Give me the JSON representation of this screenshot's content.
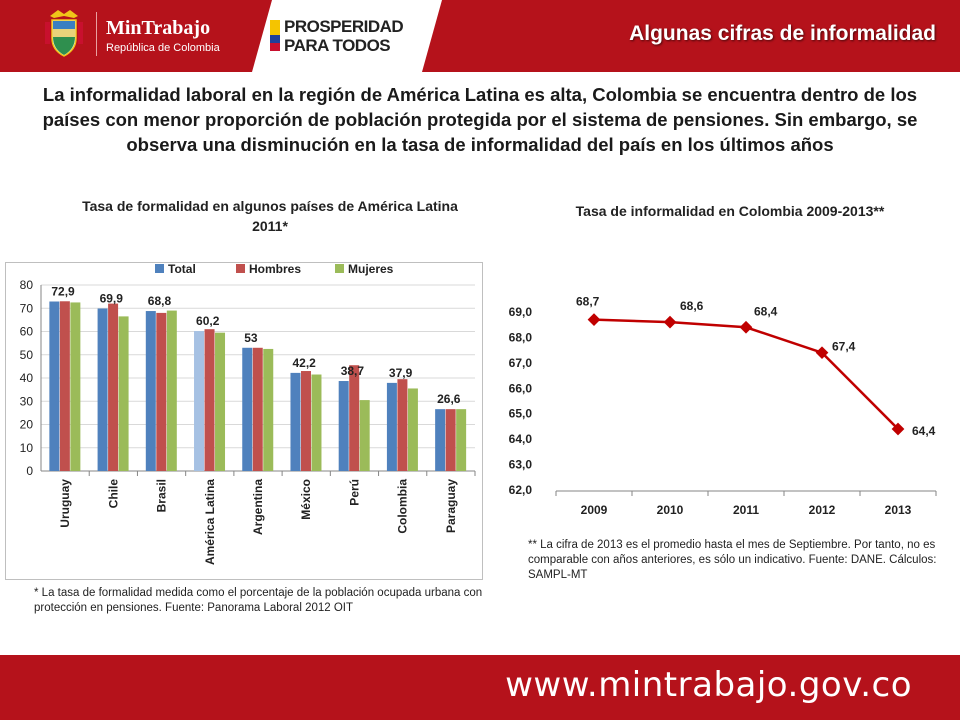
{
  "header": {
    "brand_name": "MinTrabajo",
    "brand_sub": "República de Colombia",
    "slogan_line1": "PROSPERIDAD",
    "slogan_line2": "PARA TODOS",
    "title": "Algunas cifras de informalidad"
  },
  "intro_text": "La informalidad laboral en la región de América Latina es alta, Colombia se encuentra dentro de los países con menor proporción de población protegida por el sistema de pensiones. Sin embargo, se observa una disminución en la tasa de informalidad  del país en los últimos años",
  "colors": {
    "brand_red": "#b5121b",
    "total": "#4f81bd",
    "total_highlight": "#a6c1e3",
    "hombres": "#c0504d",
    "mujeres": "#9bbb59",
    "line": "#c00000"
  },
  "chart_data": [
    {
      "type": "bar",
      "title": "Tasa de formalidad en algunos países de América Latina 2011*",
      "categories": [
        "Uruguay",
        "Chile",
        "Brasil",
        "América Latina",
        "Argentina",
        "México",
        "Perú",
        "Colombia",
        "Paraguay"
      ],
      "series": [
        {
          "name": "Total",
          "values": [
            72.9,
            69.9,
            68.8,
            60.2,
            53,
            42.2,
            38.7,
            37.9,
            26.6
          ]
        },
        {
          "name": "Hombres",
          "values": [
            73,
            72,
            68,
            61,
            53,
            43,
            45.5,
            39.5,
            26.6
          ]
        },
        {
          "name": "Mujeres",
          "values": [
            72.5,
            66.5,
            69,
            59.5,
            52.5,
            41.5,
            30.5,
            35.5,
            26.6
          ]
        }
      ],
      "data_labels": [
        "72,9",
        "69,9",
        "68,8",
        "60,2",
        "53",
        "42,2",
        "38,7",
        "37,9",
        "26,6"
      ],
      "yticks": [
        "0",
        "10",
        "20",
        "30",
        "40",
        "50",
        "60",
        "70",
        "80"
      ],
      "ylim": [
        0,
        80
      ],
      "legend_position": "top",
      "grid": true
    },
    {
      "type": "line",
      "title": "Tasa de informalidad en Colombia 2009-2013**",
      "categories": [
        "2009",
        "2010",
        "2011",
        "2012",
        "2013"
      ],
      "values": [
        68.7,
        68.6,
        68.4,
        67.4,
        64.4
      ],
      "data_labels": [
        "68,7",
        "68,6",
        "68,4",
        "67,4",
        "64,4"
      ],
      "yticks": [
        "62,0",
        "63,0",
        "64,0",
        "65,0",
        "66,0",
        "67,0",
        "68,0",
        "69,0"
      ],
      "ylim": [
        62,
        69
      ],
      "grid": false
    }
  ],
  "note_left": "* La tasa de formalidad medida como el porcentaje de la población ocupada urbana con protección en pensiones. Fuente: Panorama Laboral  2012 OIT",
  "note_right": "** La cifra de 2013 es el  promedio hasta el mes de Septiembre. Por tanto, no es comparable con años anteriores, es sólo un indicativo. Fuente: DANE. Cálculos: SAMPL-MT",
  "footer_url": "www.mintrabajo.gov.co"
}
